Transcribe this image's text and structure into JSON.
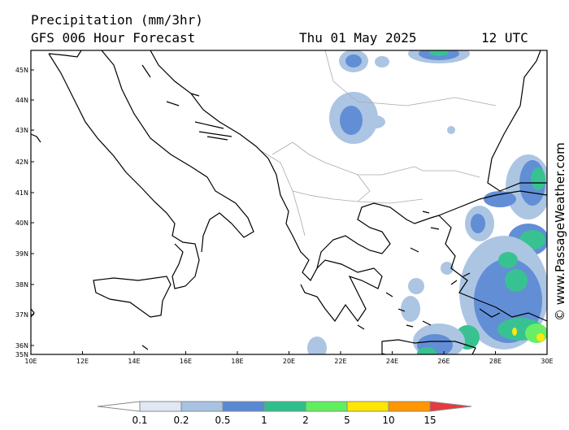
{
  "header": {
    "title": "Precipitation (mm/3hr)",
    "subtitle": "GFS 006 Hour Forecast",
    "date": "Thu 01 May 2025",
    "time": "12 UTC"
  },
  "map": {
    "lat_labels": [
      "45N",
      "44N",
      "43N",
      "42N",
      "41N",
      "40N",
      "39N",
      "38N",
      "37N",
      "36N",
      "35N"
    ],
    "lon_labels": [
      "10E",
      "12E",
      "14E",
      "16E",
      "18E",
      "20E",
      "22E",
      "24E",
      "26E",
      "28E",
      "30E"
    ]
  },
  "legend": {
    "labels": [
      "0.1",
      "0.2",
      "0.5",
      "1",
      "2",
      "5",
      "10",
      "15"
    ],
    "colors": [
      "#ffffff",
      "#e1e8f4",
      "#a8c2e2",
      "#5a88d4",
      "#2fbf8c",
      "#60ef5c",
      "#ffe600",
      "#ff9600",
      "#e63a3e"
    ]
  },
  "watermark": "© www.PassageWeather.com"
}
